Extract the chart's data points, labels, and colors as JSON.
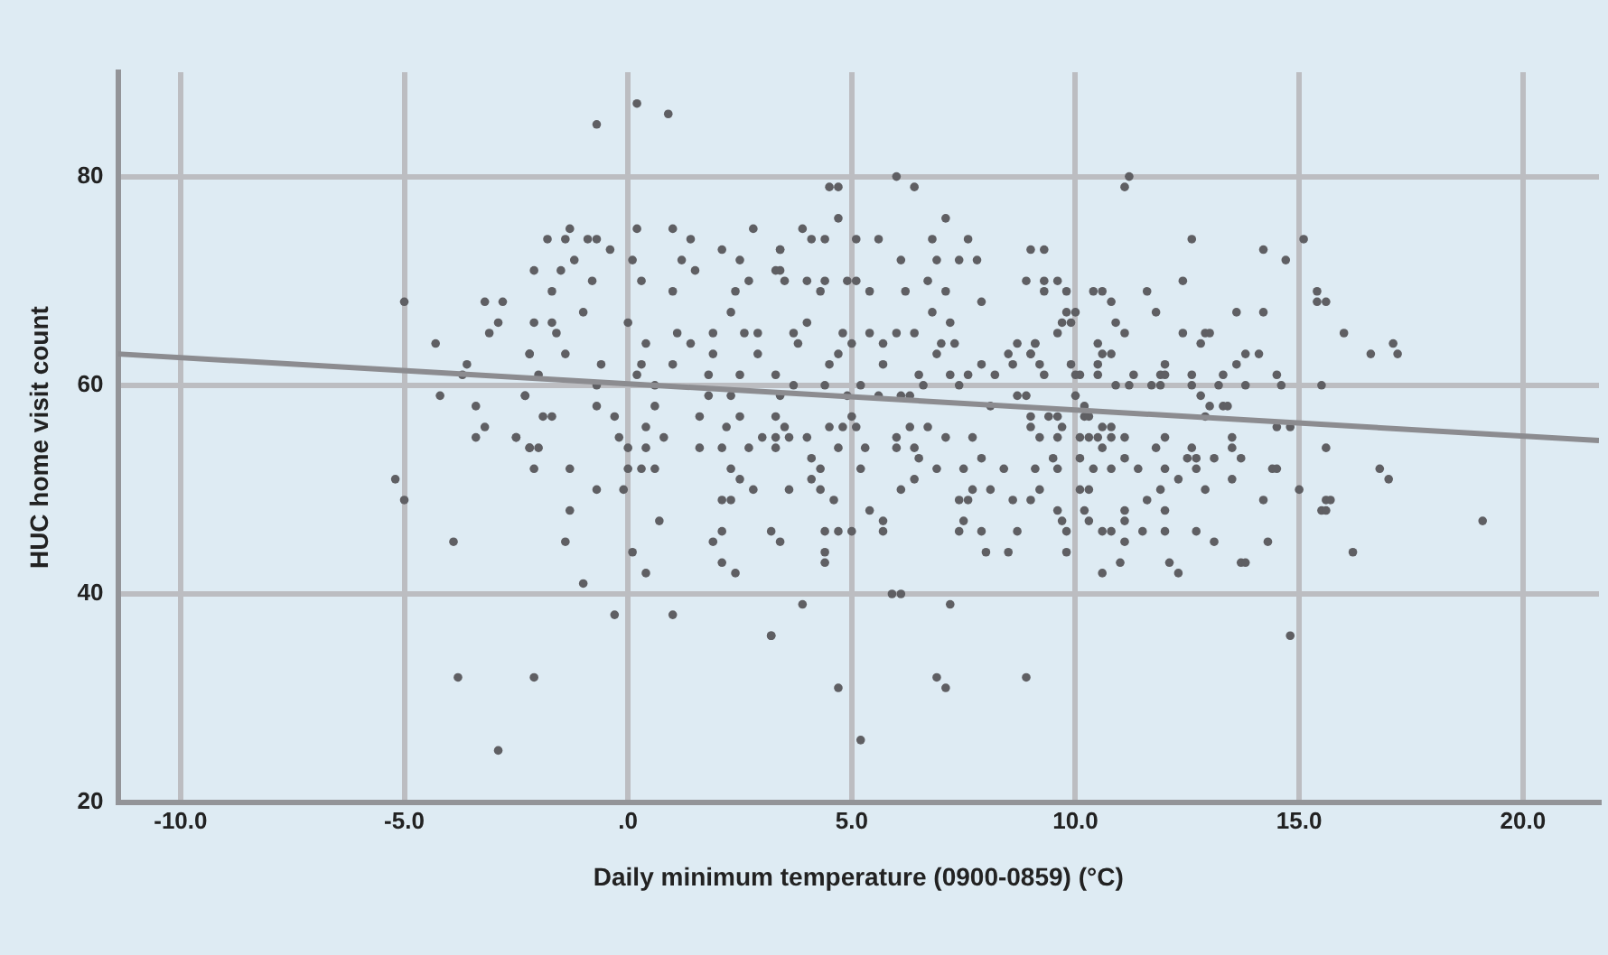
{
  "chart_data": {
    "type": "scatter",
    "xlabel": "Daily minimum temperature (0900-0859) (°C)",
    "ylabel": "HUC home visit count",
    "xlim": [
      -11.4,
      21.7
    ],
    "ylim": [
      20,
      90
    ],
    "xticks": [
      {
        "value": -10,
        "label": "-10.0"
      },
      {
        "value": -5,
        "label": "-5.0"
      },
      {
        "value": 0,
        "label": ".0"
      },
      {
        "value": 5,
        "label": "5.0"
      },
      {
        "value": 10,
        "label": "10.0"
      },
      {
        "value": 15,
        "label": "15.0"
      },
      {
        "value": 20,
        "label": "20.0"
      }
    ],
    "yticks": [
      20,
      40,
      60,
      80
    ],
    "grid": true,
    "legend": false,
    "series": [
      {
        "type": "scatter",
        "color": "#5f5f63",
        "marker": "circle",
        "x": [
          -5.0,
          -5.2,
          -5.0,
          -4.3,
          -4.2,
          -3.9,
          -3.8,
          -3.7,
          -3.6,
          -3.4,
          -3.2,
          -2.8,
          -3.1,
          -2.9,
          -3.2,
          -3.4,
          -2.9,
          -2.5,
          -2.3,
          -2.2,
          -2.2,
          0.2,
          0.9,
          -0.7,
          -1.3,
          -1.8,
          -1.4,
          -0.9,
          -0.7,
          -0.4,
          0.2,
          1.0,
          1.4,
          2.8,
          -2.1,
          -1.5,
          -1.2,
          -0.8,
          -1.7,
          0.1,
          0.3,
          1.2,
          1.5,
          1.0,
          2.1,
          2.5,
          2.4,
          2.7,
          -1.0,
          -2.1,
          -1.7,
          -1.6,
          0.0,
          -2.2,
          -1.4,
          -0.6,
          -2.0,
          -2.3,
          -0.7,
          0.4,
          0.3,
          0.2,
          1.0,
          0.6,
          1.1,
          1.4,
          1.9,
          1.9,
          2.5,
          1.8,
          2.3,
          2.6,
          2.9,
          2.9,
          -1.9,
          -1.7,
          -0.7,
          -0.3,
          -2.5,
          -2.2,
          -2.0,
          -2.1,
          -1.3,
          -0.2,
          0.0,
          0.0,
          0.3,
          0.6,
          0.6,
          0.4,
          0.8,
          0.4,
          -0.7,
          -0.1,
          -1.3,
          -1.4,
          -1.0,
          0.1,
          0.7,
          0.4,
          -0.3,
          1.0,
          -2.1,
          1.8,
          2.3,
          1.6,
          2.2,
          2.5,
          1.6,
          2.1,
          2.3,
          2.5,
          2.7,
          3.0,
          2.8,
          2.1,
          2.3,
          2.1,
          1.9,
          2.1,
          2.4,
          3.2,
          3.2,
          3.3,
          3.4,
          3.4,
          4.5,
          4.7,
          6.0,
          6.4,
          4.7,
          7.1,
          3.9,
          3.4,
          4.1,
          4.4,
          5.1,
          5.6,
          6.8,
          7.6,
          3.3,
          3.5,
          4.0,
          4.4,
          4.9,
          5.1,
          4.3,
          5.4,
          6.1,
          6.2,
          6.7,
          6.9,
          7.4,
          7.8,
          7.1,
          7.9,
          9.0,
          8.9,
          4.0,
          3.7,
          3.8,
          4.8,
          5.4,
          6.0,
          6.4,
          5.0,
          5.7,
          4.7,
          4.5,
          5.7,
          6.8,
          7.2,
          7.0,
          7.3,
          6.9,
          7.9,
          3.3,
          3.7,
          4.4,
          5.2,
          6.5,
          6.6,
          7.2,
          7.6,
          7.4,
          8.2,
          8.7,
          9.1,
          8.5,
          9.0,
          8.6,
          3.4,
          4.9,
          5.6,
          6.1,
          6.3,
          8.1,
          8.7,
          8.9,
          3.3,
          3.5,
          3.6,
          3.3,
          4.0,
          4.5,
          4.8,
          5.1,
          5.0,
          4.7,
          5.3,
          6.0,
          6.0,
          6.3,
          6.7,
          7.1,
          7.7,
          6.4,
          6.5,
          4.1,
          4.3,
          5.2,
          6.9,
          7.5,
          7.9,
          8.4,
          4.1,
          3.6,
          4.3,
          6.1,
          6.4,
          7.7,
          8.1,
          4.6,
          7.4,
          7.6,
          8.6,
          5.4,
          5.7,
          7.5,
          4.4,
          4.7,
          5.0,
          5.7,
          7.4,
          7.9,
          8.7,
          3.4,
          4.4,
          4.4,
          8.0,
          8.5,
          5.9,
          6.1,
          3.9,
          7.2,
          3.2,
          4.7,
          5.2,
          6.9,
          7.1,
          8.9,
          11.1,
          11.2,
          9.3,
          12.6,
          14.2,
          14.7,
          9.3,
          9.6,
          9.3,
          9.8,
          10.4,
          10.6,
          10.8,
          11.6,
          12.4,
          9.8,
          10.0,
          11.8,
          13.6,
          14.2,
          9.7,
          9.9,
          10.9,
          9.6,
          11.1,
          12.4,
          12.9,
          13.0,
          12.8,
          10.5,
          9.1,
          9.0,
          10.6,
          10.8,
          13.8,
          14.1,
          9.2,
          9.9,
          10.5,
          12.0,
          13.6,
          9.3,
          10.0,
          10.1,
          10.5,
          11.3,
          11.9,
          12.0,
          12.6,
          13.3,
          14.5,
          10.9,
          11.2,
          11.7,
          11.9,
          12.6,
          13.2,
          13.8,
          14.6,
          10.0,
          12.8,
          10.2,
          13.0,
          13.3,
          13.4,
          9.0,
          9.4,
          9.6,
          10.2,
          10.3,
          12.9,
          9.0,
          9.7,
          10.6,
          10.8,
          14.5,
          14.8,
          9.2,
          9.6,
          10.1,
          10.3,
          10.5,
          10.8,
          11.1,
          12.0,
          13.5,
          10.6,
          11.8,
          12.6,
          13.5,
          9.5,
          10.1,
          11.1,
          12.5,
          12.7,
          13.1,
          13.7,
          9.1,
          9.6,
          10.4,
          10.8,
          11.4,
          12.0,
          12.7,
          14.4,
          14.5,
          12.3,
          13.5,
          9.2,
          10.1,
          10.3,
          11.9,
          12.9,
          9.0,
          11.6,
          14.2,
          9.6,
          10.2,
          11.1,
          12.0,
          9.7,
          10.3,
          11.1,
          9.8,
          10.6,
          10.8,
          11.5,
          12.0,
          12.7,
          11.1,
          13.1,
          14.3,
          9.8,
          11.0,
          12.1,
          13.7,
          13.8,
          10.6,
          12.3,
          14.8,
          15.1,
          15.4,
          15.4,
          15.6,
          16.0,
          16.6,
          17.1,
          17.2,
          15.5,
          15.6,
          16.8,
          17.0,
          15.0,
          15.6,
          15.7,
          15.5,
          15.6,
          16.2,
          19.1
        ],
        "values": [
          68,
          51,
          49,
          64,
          59,
          45,
          32,
          61,
          62,
          58,
          68,
          68,
          65,
          66,
          56,
          55,
          25,
          55,
          59,
          54,
          63,
          87,
          86,
          85,
          75,
          74,
          74,
          74,
          74,
          73,
          75,
          75,
          74,
          75,
          71,
          71,
          72,
          70,
          69,
          72,
          70,
          72,
          71,
          69,
          73,
          72,
          69,
          70,
          67,
          66,
          66,
          65,
          66,
          63,
          63,
          62,
          61,
          59,
          60,
          64,
          62,
          61,
          62,
          60,
          65,
          64,
          65,
          63,
          61,
          61,
          67,
          65,
          63,
          65,
          57,
          57,
          58,
          57,
          55,
          54,
          54,
          52,
          52,
          55,
          54,
          52,
          52,
          52,
          58,
          56,
          55,
          54,
          50,
          50,
          48,
          45,
          41,
          44,
          47,
          42,
          38,
          38,
          32,
          59,
          59,
          57,
          56,
          57,
          54,
          54,
          52,
          51,
          54,
          55,
          50,
          49,
          49,
          46,
          45,
          43,
          42,
          46,
          36,
          55,
          71,
          73,
          79,
          79,
          80,
          79,
          76,
          76,
          75,
          73,
          74,
          74,
          74,
          74,
          74,
          74,
          71,
          70,
          70,
          70,
          70,
          70,
          69,
          69,
          72,
          69,
          70,
          72,
          72,
          72,
          69,
          68,
          73,
          70,
          66,
          65,
          64,
          65,
          65,
          65,
          65,
          64,
          64,
          63,
          62,
          62,
          67,
          66,
          64,
          64,
          63,
          62,
          61,
          60,
          60,
          60,
          61,
          60,
          61,
          61,
          60,
          61,
          64,
          64,
          63,
          63,
          62,
          59,
          59,
          59,
          59,
          59,
          58,
          59,
          59,
          57,
          56,
          55,
          54,
          55,
          56,
          56,
          56,
          57,
          54,
          54,
          55,
          54,
          56,
          56,
          55,
          55,
          54,
          53,
          53,
          52,
          52,
          52,
          52,
          53,
          52,
          51,
          50,
          50,
          50,
          51,
          50,
          50,
          49,
          49,
          49,
          49,
          48,
          47,
          47,
          46,
          46,
          46,
          46,
          46,
          46,
          46,
          45,
          44,
          43,
          44,
          44,
          40,
          40,
          39,
          39,
          36,
          31,
          26,
          32,
          31,
          32,
          79,
          80,
          73,
          74,
          73,
          72,
          70,
          70,
          69,
          69,
          69,
          69,
          68,
          69,
          70,
          67,
          67,
          67,
          67,
          67,
          66,
          66,
          66,
          65,
          65,
          65,
          65,
          65,
          64,
          64,
          64,
          63,
          63,
          63,
          63,
          63,
          62,
          62,
          62,
          62,
          62,
          61,
          61,
          61,
          61,
          61,
          61,
          61,
          61,
          61,
          61,
          60,
          60,
          60,
          60,
          60,
          60,
          60,
          60,
          59,
          59,
          58,
          58,
          58,
          58,
          57,
          57,
          57,
          57,
          57,
          57,
          56,
          56,
          56,
          56,
          56,
          56,
          55,
          55,
          55,
          55,
          55,
          55,
          55,
          55,
          55,
          54,
          54,
          54,
          54,
          53,
          53,
          53,
          53,
          53,
          53,
          53,
          52,
          52,
          52,
          52,
          52,
          52,
          52,
          52,
          52,
          51,
          51,
          50,
          50,
          50,
          50,
          50,
          49,
          49,
          49,
          48,
          48,
          48,
          48,
          47,
          47,
          47,
          46,
          46,
          46,
          46,
          46,
          46,
          45,
          45,
          45,
          44,
          43,
          43,
          43,
          43,
          42,
          42,
          36,
          74,
          69,
          68,
          68,
          65,
          63,
          64,
          63,
          60,
          54,
          52,
          51,
          50,
          49,
          49,
          48,
          48,
          44,
          47
        ]
      },
      {
        "type": "line",
        "color": "#8c8c90",
        "marker": "none",
        "line_style": "solid",
        "x": [
          -11.4,
          21.7
        ],
        "values": [
          63,
          54.7
        ]
      }
    ]
  }
}
